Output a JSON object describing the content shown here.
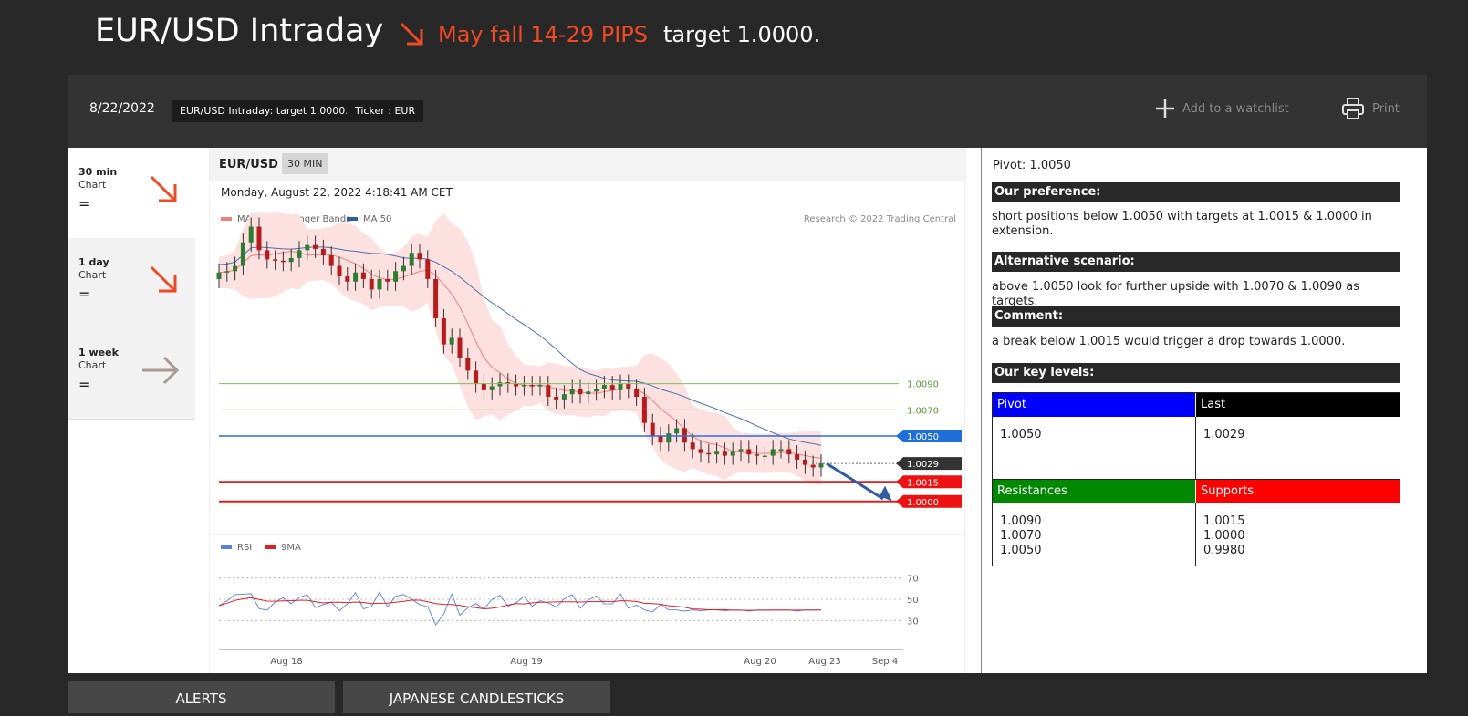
{
  "header": {
    "title": "EUR/USD Intraday",
    "trend": "May fall 14-29 PIPS",
    "target": "target 1.0000.",
    "trend_color": "#ef4a23"
  },
  "panel": {
    "date": "8/22/2022",
    "tags": [
      "EUR/USD Intraday: target 1.0000.",
      "Ticker : EUR"
    ],
    "watchlist": "Add to a watchlist",
    "print": "Print"
  },
  "timeframes": [
    {
      "label": "30 min",
      "sub": "Chart",
      "eq": "=",
      "arrow": "down-right",
      "color": "#ef4a23"
    },
    {
      "label": "1 day",
      "sub": "Chart",
      "eq": "=",
      "arrow": "down-right",
      "color": "#ef4a23"
    },
    {
      "label": "1 week",
      "sub": "Chart",
      "eq": "=",
      "arrow": "right",
      "color": "#a89a8f"
    }
  ],
  "chart": {
    "symbol": "EUR/USD",
    "timeframe": "30 MIN",
    "timestamp": "Monday, August 22, 2022 4:18:41 AM CET",
    "legend": [
      "MA 20 + Bollinger Bands",
      "MA 50"
    ],
    "credit": "Research © 2022 Trading Central",
    "rsi_legend": [
      "RSI",
      "9MA"
    ],
    "x_labels": [
      "Aug 18",
      "Aug 19",
      "Aug 20",
      "Aug 23",
      "Sep 4"
    ],
    "rsi_levels": [
      "70",
      "50",
      "30"
    ]
  },
  "chart_data": {
    "type": "line",
    "levels": [
      {
        "label": "1.0090",
        "value": 1.009,
        "kind": "resistance"
      },
      {
        "label": "1.0070",
        "value": 1.007,
        "kind": "resistance"
      },
      {
        "label": "1.0050",
        "value": 1.005,
        "kind": "pivot"
      },
      {
        "label": "1.0029",
        "value": 1.0029,
        "kind": "last"
      },
      {
        "label": "1.0015",
        "value": 1.0015,
        "kind": "support"
      },
      {
        "label": "1.0000",
        "value": 1.0,
        "kind": "support"
      }
    ],
    "close": [
      1.0175,
      1.0176,
      1.018,
      1.0198,
      1.021,
      1.0192,
      1.0185,
      1.0184,
      1.0183,
      1.0186,
      1.0192,
      1.0196,
      1.0193,
      1.0188,
      1.018,
      1.0172,
      1.0168,
      1.0175,
      1.017,
      1.0162,
      1.017,
      1.0168,
      1.0176,
      1.018,
      1.019,
      1.0185,
      1.017,
      1.014,
      1.012,
      1.0125,
      1.011,
      1.01,
      1.009,
      1.0085,
      1.0088,
      1.0091,
      1.009,
      1.0088,
      1.0089,
      1.0088,
      1.0089,
      1.008,
      1.0078,
      1.0082,
      1.0086,
      1.0082,
      1.0084,
      1.0086,
      1.0089,
      1.0085,
      1.009,
      1.0086,
      1.008,
      1.006,
      1.005,
      1.0045,
      1.0052,
      1.0056,
      1.0045,
      1.004,
      1.0037,
      1.0036,
      1.0038,
      1.0035,
      1.0038,
      1.004,
      1.0036,
      1.0035,
      1.0035,
      1.004,
      1.004,
      1.0036,
      1.0032,
      1.0028,
      1.0026,
      1.0029
    ],
    "rsi": {
      "range": [
        20,
        80
      ],
      "levels": [
        70,
        50,
        30
      ]
    }
  },
  "analysis": {
    "pivot_line": "Pivot: 1.0050",
    "preference_title": "Our preference:",
    "preference": "short positions below 1.0050 with targets at 1.0015 & 1.0000 in extension.",
    "alternative_title": "Alternative scenario:",
    "alternative": "above 1.0050 look for further upside with 1.0070 & 1.0090 as targets.",
    "comment_title": "Comment:",
    "comment": "a break below 1.0015 would trigger a drop towards 1.0000.",
    "levels_title": "Our key levels:",
    "table": {
      "pivot_h": "Pivot",
      "pivot_v": "1.0050",
      "last_h": "Last",
      "last_v": "1.0029",
      "res_h": "Resistances",
      "res_v": [
        "1.0090",
        "1.0070",
        "1.0050"
      ],
      "sup_h": "Supports",
      "sup_v": [
        "1.0015",
        "1.0000",
        "0.9980"
      ]
    }
  },
  "tabs": [
    "ALERTS",
    "JAPANESE CANDLESTICKS"
  ]
}
